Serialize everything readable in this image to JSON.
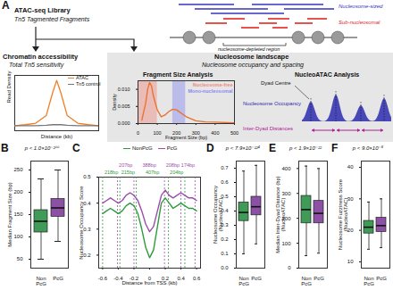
{
  "diagram": {
    "panel_label": "A",
    "library_title": "ATAC-seq Library",
    "library_subtitle": "Tn5 Tagmented Fragments",
    "fragment_legend": [
      {
        "name": "Nucleosome-sized",
        "color": "#3535c0"
      },
      {
        "name": "Sub-nucleosomal",
        "color": "#e0261f"
      }
    ],
    "ndr_label": "nucleosome-depleted region",
    "accessibility_title": "Chromatin accessibility",
    "accessibility_subtitle": "Total Tn5 sensitivity",
    "landscape_title": "Nucleosome landscape",
    "landscape_subtitle": "Nucleosome occupancy and spacing",
    "nucleoatac": {
      "title": "NucleoATAC Analysis",
      "dyad_label": "Dyad Centre",
      "occupancy_label": "Nucleosome Occupancy",
      "distance_label": "Inter-Dyad Distances"
    }
  },
  "chart_data": [
    {
      "type": "line",
      "x_label": "Distance (kb)",
      "y_label": "Read Density",
      "x": [
        -1,
        -0.75,
        -0.5,
        -0.25,
        -0.1,
        0,
        0.1,
        0.25,
        0.5,
        0.75,
        1
      ],
      "series": [
        {
          "name": "ATAC",
          "color": "#f07e26",
          "values": [
            0.1,
            0.12,
            0.15,
            0.3,
            0.75,
            1.0,
            0.75,
            0.3,
            0.15,
            0.12,
            0.1
          ]
        },
        {
          "name": "Tn5 control",
          "color": "#777777",
          "values": [
            0.1,
            0.1,
            0.1,
            0.11,
            0.12,
            0.12,
            0.12,
            0.11,
            0.1,
            0.1,
            0.1
          ]
        }
      ],
      "xlim": [
        -1,
        1
      ],
      "ylim": [
        0,
        1.1
      ],
      "tick_labels": false,
      "legend": "top-right"
    },
    {
      "type": "line",
      "title": "Fragment Size Analysis",
      "x_label": "Fragment Size (bp)",
      "y_label": "Density",
      "x": [
        20,
        40,
        50,
        60,
        70,
        80,
        100,
        120,
        140,
        160,
        180,
        200,
        220,
        250,
        300,
        350,
        400,
        500
      ],
      "values": [
        0.001,
        0.006,
        0.01,
        0.012,
        0.011,
        0.008,
        0.004,
        0.002,
        0.0025,
        0.0035,
        0.0042,
        0.004,
        0.0032,
        0.002,
        0.0008,
        0.0005,
        0.0004,
        0.0002
      ],
      "color": "#e8702a",
      "regions": [
        {
          "name": "Nucleosome-free",
          "from": 0,
          "to": 100,
          "color": "#f08a80"
        },
        {
          "name": "Mono-nucleosomal",
          "from": 180,
          "to": 247,
          "color": "#8a8af0"
        }
      ],
      "xlim": [
        0,
        500
      ],
      "ylim": [
        0,
        0.0125
      ],
      "xticks": [
        0,
        100,
        200,
        300,
        400,
        500
      ],
      "yticks": [
        {
          "value": 0,
          "label": "0.000"
        },
        {
          "value": 0.005,
          "label": "0.005"
        },
        {
          "value": 0.01,
          "label": "0.010"
        }
      ]
    },
    {
      "panel_label": "B",
      "type": "box",
      "y_label": "Median Fragment Size (bp)",
      "categories": [
        "Non\nPcG",
        "PcG"
      ],
      "colors": [
        "#3f9b57",
        "#8c51a5"
      ],
      "boxes": [
        {
          "whisker_low": 50,
          "q1": 110,
          "median": 135,
          "q3": 160,
          "whisker_high": 230
        },
        {
          "whisker_low": 90,
          "q1": 145,
          "median": 165,
          "q3": 185,
          "whisker_high": 250
        }
      ],
      "annotation": "p < 1.0×10⁻²⁰⁰",
      "ylim": [
        30,
        270
      ],
      "yticks": [
        50,
        100,
        150,
        200,
        250
      ]
    },
    {
      "panel_label": "C",
      "type": "line",
      "x_label": "Distance from TSS (kb)",
      "y_label": "Nucleosome Occupancy Score",
      "x": [
        -0.6,
        -0.55,
        -0.5,
        -0.45,
        -0.4,
        -0.35,
        -0.3,
        -0.25,
        -0.2,
        -0.15,
        -0.1,
        -0.05,
        0,
        0.05,
        0.1,
        0.15,
        0.2,
        0.25,
        0.3,
        0.35,
        0.4,
        0.45,
        0.5,
        0.55,
        0.6
      ],
      "series": [
        {
          "name": "NonPcG",
          "color": "#2e9b3c",
          "values": [
            0.36,
            0.37,
            0.38,
            0.37,
            0.36,
            0.37,
            0.39,
            0.4,
            0.39,
            0.36,
            0.3,
            0.23,
            0.19,
            0.22,
            0.31,
            0.4,
            0.42,
            0.4,
            0.38,
            0.39,
            0.4,
            0.39,
            0.38,
            0.38,
            0.37
          ],
          "dyads": [
            -0.6,
            -0.38,
            -0.17,
            0.24,
            0.45
          ],
          "spacings": [
            "218bp",
            "215bp",
            "407bp",
            "204bp"
          ]
        },
        {
          "name": "PcG",
          "color": "#9b4dab",
          "values": [
            0.4,
            0.41,
            0.42,
            0.41,
            0.4,
            0.41,
            0.43,
            0.44,
            0.43,
            0.41,
            0.37,
            0.32,
            0.29,
            0.31,
            0.37,
            0.43,
            0.45,
            0.43,
            0.42,
            0.43,
            0.44,
            0.43,
            0.42,
            0.42,
            0.41
          ],
          "dyads": [
            -0.41,
            -0.2,
            0.19,
            0.4,
            0.58
          ],
          "spacings": [
            "207bp",
            "388bp",
            "208bp",
            "174bp"
          ]
        }
      ],
      "xlim": [
        -0.65,
        0.65
      ],
      "ylim": [
        0.15,
        0.5
      ],
      "xticks": [
        -0.6,
        -0.4,
        -0.2,
        0,
        0.2,
        0.4,
        0.6
      ],
      "yticks": [
        0.2,
        0.3,
        0.4,
        0.5
      ],
      "legend": "top"
    },
    {
      "panel_label": "D",
      "type": "box",
      "y_label": "Nucleosome Occupancy\n(NucleoATAC)",
      "categories": [
        "Non\nPcG",
        "PcG"
      ],
      "colors": [
        "#3f9b57",
        "#8c51a5"
      ],
      "boxes": [
        {
          "whisker_low": 0.1,
          "q1": 0.33,
          "median": 0.39,
          "q3": 0.46,
          "whisker_high": 0.68
        },
        {
          "whisker_low": 0.17,
          "q1": 0.37,
          "median": 0.43,
          "q3": 0.5,
          "whisker_high": 0.72
        }
      ],
      "annotation": "p < 7.9×10⁻¹²⁴",
      "ylim": [
        0,
        0.75
      ],
      "yticks": [
        {
          "value": 0,
          "label": "0.0"
        },
        0.1,
        0.2,
        0.3,
        0.4,
        0.5,
        0.6,
        0.7
      ]
    },
    {
      "panel_label": "E",
      "type": "box",
      "y_label": "Median Inter-Dyad Distance (bp)\n(NucleoATAC)",
      "categories": [
        "Non\nPcG",
        "PcG"
      ],
      "colors": [
        "#3f9b57",
        "#8c51a5"
      ],
      "boxes": [
        {
          "whisker_low": 50,
          "q1": 180,
          "median": 235,
          "q3": 290,
          "whisker_high": 410
        },
        {
          "whisker_low": 60,
          "q1": 180,
          "median": 220,
          "q3": 270,
          "whisker_high": 400
        }
      ],
      "annotation": "p < 1.9×10⁻²²",
      "ylim": [
        0,
        430
      ],
      "yticks": [
        0,
        100,
        200,
        300,
        400
      ]
    },
    {
      "panel_label": "F",
      "type": "box",
      "y_label": "Nucleosome Fuzziness Score\n(NucleoATAC)",
      "categories": [
        "Non\nPcG",
        "PcG"
      ],
      "colors": [
        "#3f9b57",
        "#8c51a5"
      ],
      "boxes": [
        {
          "whisker_low": 14,
          "q1": 19,
          "median": 21,
          "q3": 23,
          "whisker_high": 29
        },
        {
          "whisker_low": 14.5,
          "q1": 19.5,
          "median": 21.5,
          "q3": 24,
          "whisker_high": 30
        }
      ],
      "annotation": "p < 9.0×10⁻⁶",
      "ylim": [
        8,
        42
      ],
      "yticks": [
        10,
        20,
        30,
        40
      ]
    }
  ]
}
